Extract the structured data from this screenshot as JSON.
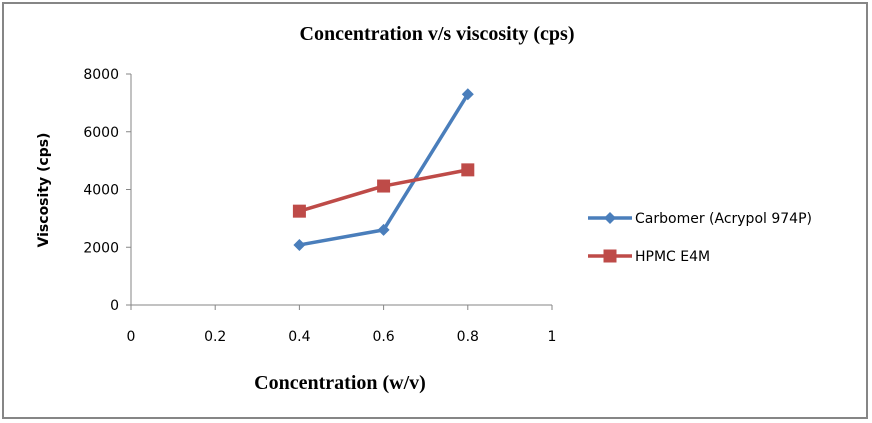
{
  "chart_data": {
    "type": "line",
    "title": "Concentration v/s viscosity (cps)",
    "xlabel": "Concentration (w/v)",
    "ylabel": "Viscosity (cps)",
    "xlim": [
      0,
      1
    ],
    "ylim": [
      0,
      8000
    ],
    "xticks": [
      0,
      0.2,
      0.4,
      0.6,
      0.8,
      1
    ],
    "xtick_labels": [
      "0",
      "0.2",
      "0.4",
      "0.6",
      "0.8",
      "1"
    ],
    "yticks": [
      0,
      2000,
      4000,
      6000,
      8000
    ],
    "ytick_labels": [
      "0",
      "2000",
      "4000",
      "6000",
      "8000"
    ],
    "grid": false,
    "legend_position": "right",
    "series": [
      {
        "name": "Carbomer (Acrypol 974P)",
        "color": "#4A7EBB",
        "marker": "diamond",
        "x": [
          0.4,
          0.6,
          0.8
        ],
        "values": [
          2080,
          2600,
          7300
        ]
      },
      {
        "name": "HPMC E4M",
        "color": "#BE4B48",
        "marker": "square",
        "x": [
          0.4,
          0.6,
          0.8
        ],
        "values": [
          3250,
          4120,
          4680
        ]
      }
    ]
  }
}
